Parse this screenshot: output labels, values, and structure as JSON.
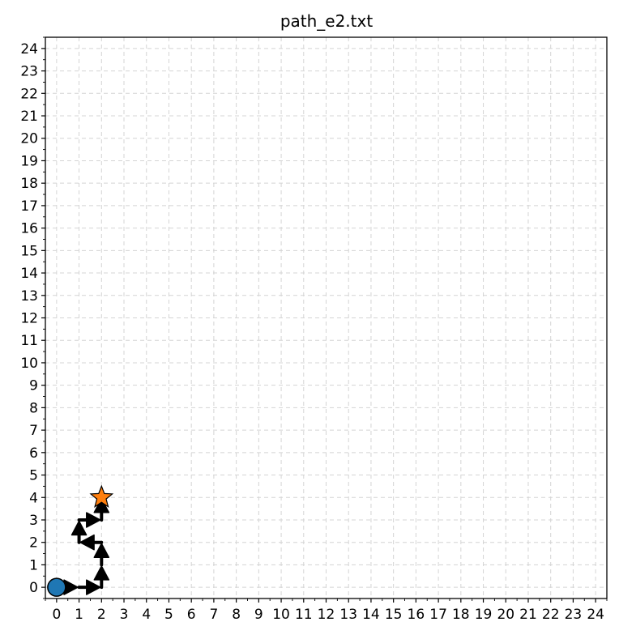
{
  "chart_data": {
    "type": "line",
    "title": "path_e2.txt",
    "xlabel": "",
    "ylabel": "",
    "xlim": [
      -0.5,
      24.5
    ],
    "ylim": [
      -0.5,
      24.5
    ],
    "xticks": [
      0,
      1,
      2,
      3,
      4,
      5,
      6,
      7,
      8,
      9,
      10,
      11,
      12,
      13,
      14,
      15,
      16,
      17,
      18,
      19,
      20,
      21,
      22,
      23,
      24
    ],
    "yticks": [
      0,
      1,
      2,
      3,
      4,
      5,
      6,
      7,
      8,
      9,
      10,
      11,
      12,
      13,
      14,
      15,
      16,
      17,
      18,
      19,
      20,
      21,
      22,
      23,
      24
    ],
    "grid": true,
    "path": [
      {
        "x": 0,
        "y": 0
      },
      {
        "x": 1,
        "y": 0
      },
      {
        "x": 2,
        "y": 0
      },
      {
        "x": 2,
        "y": 1
      },
      {
        "x": 2,
        "y": 2
      },
      {
        "x": 1,
        "y": 2
      },
      {
        "x": 1,
        "y": 3
      },
      {
        "x": 2,
        "y": 3
      },
      {
        "x": 2,
        "y": 4
      }
    ],
    "start": {
      "x": 0,
      "y": 0,
      "marker": "circle",
      "color": "#1f77b4"
    },
    "goal": {
      "x": 2,
      "y": 4,
      "marker": "star",
      "color": "#ff7f0e"
    },
    "arrow_color": "#000000"
  }
}
